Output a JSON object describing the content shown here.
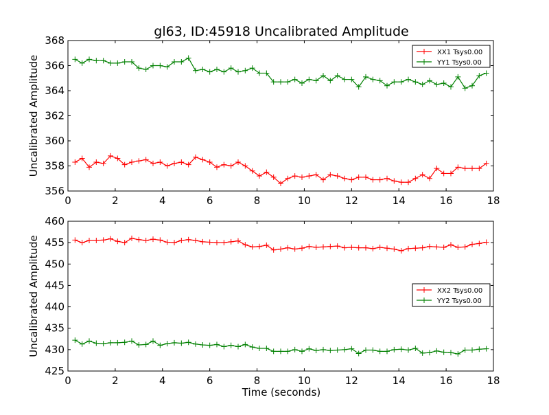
{
  "figure": {
    "title": "gl63, ID:45918 Uncalibrated Amplitude",
    "xlabel": "Time (seconds)"
  },
  "chart_data": [
    {
      "type": "line",
      "title": "gl63, ID:45918 Uncalibrated Amplitude",
      "xlabel": "",
      "ylabel": "Uncalibrated Amplitude",
      "xlim": [
        0,
        18
      ],
      "ylim": [
        356,
        368
      ],
      "xticks": [
        0,
        2,
        4,
        6,
        8,
        10,
        12,
        14,
        16,
        18
      ],
      "yticks": [
        356,
        358,
        360,
        362,
        364,
        366,
        368
      ],
      "grid": false,
      "legend_position": "upper-right",
      "x": [
        0.3,
        0.6,
        0.9,
        1.2,
        1.5,
        1.8,
        2.1,
        2.4,
        2.7,
        3.0,
        3.3,
        3.6,
        3.9,
        4.2,
        4.5,
        4.8,
        5.1,
        5.4,
        5.7,
        6.0,
        6.3,
        6.6,
        6.9,
        7.2,
        7.5,
        7.8,
        8.1,
        8.4,
        8.7,
        9.0,
        9.3,
        9.6,
        9.9,
        10.2,
        10.5,
        10.8,
        11.1,
        11.4,
        11.7,
        12.0,
        12.3,
        12.6,
        12.9,
        13.2,
        13.5,
        13.8,
        14.1,
        14.4,
        14.7,
        15.0,
        15.3,
        15.6,
        15.9,
        16.2,
        16.5,
        16.8,
        17.1,
        17.4,
        17.7
      ],
      "series": [
        {
          "name": "XX1 Tsys0.00",
          "color": "#ff0000",
          "values": [
            358.3,
            358.6,
            357.9,
            358.3,
            358.2,
            358.8,
            358.6,
            358.1,
            358.3,
            358.4,
            358.5,
            358.2,
            358.3,
            358.0,
            358.2,
            358.3,
            358.1,
            358.7,
            358.5,
            358.3,
            357.9,
            358.1,
            358.0,
            358.3,
            358.0,
            357.6,
            357.2,
            357.5,
            357.1,
            356.6,
            357.0,
            357.2,
            357.1,
            357.2,
            357.3,
            356.9,
            357.3,
            357.2,
            357.0,
            356.9,
            357.1,
            357.1,
            356.9,
            356.9,
            357.0,
            356.8,
            356.7,
            356.7,
            357.0,
            357.3,
            357.0,
            357.8,
            357.4,
            357.4,
            357.9,
            357.8,
            357.8,
            357.8,
            358.2
          ]
        },
        {
          "name": "YY1 Tsys0.00",
          "color": "#008000",
          "values": [
            366.5,
            366.2,
            366.5,
            366.4,
            366.4,
            366.2,
            366.2,
            366.3,
            366.3,
            365.8,
            365.7,
            366.0,
            366.0,
            365.9,
            366.3,
            366.3,
            366.6,
            365.6,
            365.7,
            365.5,
            365.7,
            365.5,
            365.8,
            365.5,
            365.6,
            365.8,
            365.4,
            365.4,
            364.7,
            364.7,
            364.7,
            364.9,
            364.6,
            364.9,
            364.8,
            365.2,
            364.8,
            365.2,
            364.9,
            364.9,
            364.3,
            365.1,
            364.9,
            364.8,
            364.4,
            364.7,
            364.7,
            364.9,
            364.7,
            364.5,
            364.8,
            364.5,
            364.6,
            364.3,
            365.1,
            364.2,
            364.4,
            365.2,
            365.4
          ]
        }
      ]
    },
    {
      "type": "line",
      "title": "",
      "xlabel": "Time (seconds)",
      "ylabel": "Uncalibrated Amplitude",
      "xlim": [
        0,
        18
      ],
      "ylim": [
        425,
        460
      ],
      "xticks": [
        0,
        2,
        4,
        6,
        8,
        10,
        12,
        14,
        16,
        18
      ],
      "yticks": [
        425,
        430,
        435,
        440,
        445,
        450,
        455,
        460
      ],
      "grid": false,
      "legend_position": "center-right",
      "x": [
        0.3,
        0.6,
        0.9,
        1.2,
        1.5,
        1.8,
        2.1,
        2.4,
        2.7,
        3.0,
        3.3,
        3.6,
        3.9,
        4.2,
        4.5,
        4.8,
        5.1,
        5.4,
        5.7,
        6.0,
        6.3,
        6.6,
        6.9,
        7.2,
        7.5,
        7.8,
        8.1,
        8.4,
        8.7,
        9.0,
        9.3,
        9.6,
        9.9,
        10.2,
        10.5,
        10.8,
        11.1,
        11.4,
        11.7,
        12.0,
        12.3,
        12.6,
        12.9,
        13.2,
        13.5,
        13.8,
        14.1,
        14.4,
        14.7,
        15.0,
        15.3,
        15.6,
        15.9,
        16.2,
        16.5,
        16.8,
        17.1,
        17.4,
        17.7
      ],
      "series": [
        {
          "name": "XX2 Tsys0.00",
          "color": "#ff0000",
          "values": [
            455.6,
            455.0,
            455.5,
            455.5,
            455.6,
            455.9,
            455.3,
            455.0,
            456.0,
            455.7,
            455.5,
            455.8,
            455.6,
            455.1,
            455.0,
            455.5,
            455.7,
            455.5,
            455.2,
            455.1,
            455.0,
            455.0,
            455.2,
            455.4,
            454.5,
            454.0,
            454.1,
            454.4,
            453.3,
            453.5,
            453.8,
            453.5,
            453.7,
            454.1,
            453.9,
            454.0,
            454.1,
            454.2,
            453.8,
            453.9,
            453.8,
            453.8,
            453.6,
            453.9,
            453.7,
            453.5,
            453.1,
            453.6,
            453.7,
            453.8,
            454.1,
            454.0,
            453.9,
            454.5,
            453.9,
            454.0,
            454.6,
            454.8,
            455.1
          ]
        },
        {
          "name": "YY2 Tsys0.00",
          "color": "#008000",
          "values": [
            432.2,
            431.3,
            432.0,
            431.5,
            431.4,
            431.6,
            431.6,
            431.7,
            432.0,
            431.1,
            431.2,
            432.0,
            431.0,
            431.4,
            431.6,
            431.5,
            431.7,
            431.3,
            431.1,
            431.0,
            431.2,
            430.7,
            431.0,
            430.7,
            431.2,
            430.6,
            430.3,
            430.3,
            429.6,
            429.6,
            429.6,
            430.0,
            429.6,
            430.2,
            429.8,
            430.0,
            429.8,
            429.9,
            430.0,
            430.2,
            429.1,
            429.9,
            429.9,
            429.6,
            429.6,
            430.0,
            430.1,
            429.9,
            430.3,
            429.2,
            429.3,
            429.7,
            429.4,
            429.3,
            429.0,
            429.9,
            429.9,
            430.1,
            430.2
          ]
        }
      ]
    }
  ]
}
